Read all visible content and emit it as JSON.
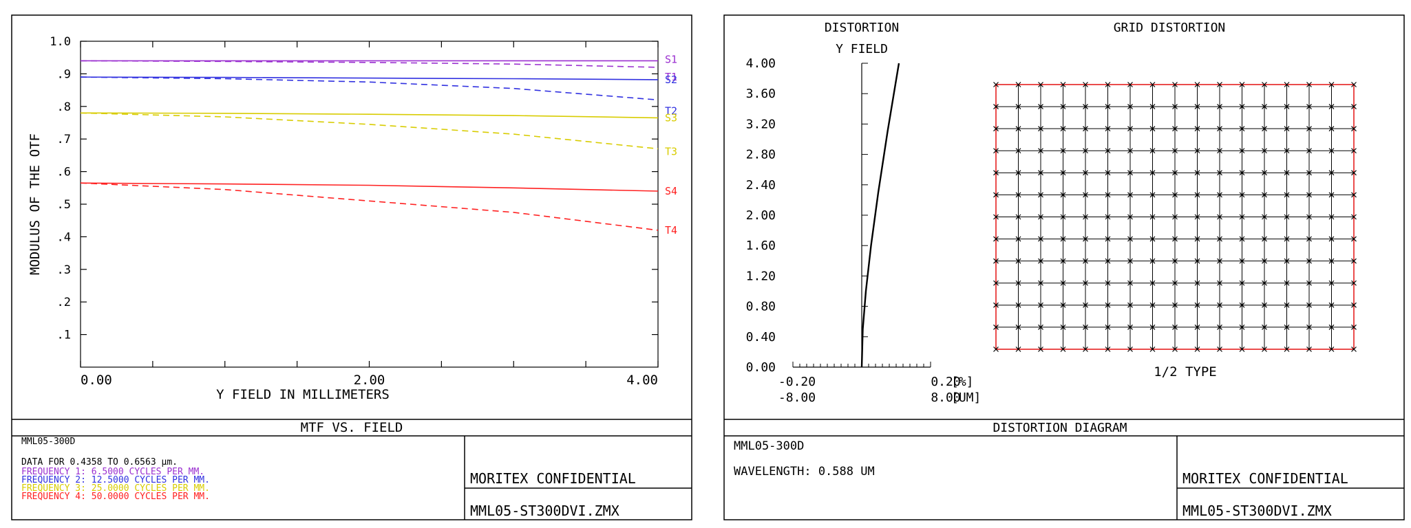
{
  "left_panel": {
    "footer_title": "MTF VS. FIELD",
    "lens_name": "MML05-300D",
    "data_line": "DATA FOR 0.4358 TO 0.6563 µm.",
    "frequencies": [
      {
        "text": "FREQUENCY 1:    6.5000  CYCLES  PER  MM.",
        "color": "#9b30d0"
      },
      {
        "text": "FREQUENCY 2:   12.5000  CYCLES  PER  MM.",
        "color": "#3030e0"
      },
      {
        "text": "FREQUENCY 3:   25.0000  CYCLES  PER  MM.",
        "color": "#d8cc00"
      },
      {
        "text": "FREQUENCY 4:   50.0000  CYCLES  PER  MM.",
        "color": "#ff2020"
      }
    ],
    "confidential": "MORITEX CONFIDENTIAL",
    "file_name": "MML05-ST300DVI.ZMX"
  },
  "right_panel": {
    "footer_title": "DISTORTION DIAGRAM",
    "lens_name": "MML05-300D",
    "wavelength": "WAVELENGTH: 0.588 UM",
    "confidential": "MORITEX CONFIDENTIAL",
    "file_name": "MML05-ST300DVI.ZMX",
    "grid_title": "GRID DISTORTION",
    "grid_caption": "1/2 TYPE",
    "grid_color": "#e00000",
    "grid_cols": 17,
    "grid_rows": 13
  },
  "chart_data": [
    {
      "type": "line",
      "ylabel": "MODULUS OF THE OTF",
      "xlabel": "Y FIELD IN MILLIMETERS",
      "xlim": [
        0,
        4
      ],
      "ylim": [
        0,
        1.0
      ],
      "x_tick_labels": [
        "0.00",
        "2.00",
        "4.00"
      ],
      "x_tick_values": [
        0,
        2,
        4
      ],
      "y_tick_labels": [
        "1.0",
        ".9",
        ".8",
        ".7",
        ".6",
        ".5",
        ".4",
        ".3",
        ".2",
        ".1"
      ],
      "y_tick_values": [
        1.0,
        0.9,
        0.8,
        0.7,
        0.6,
        0.5,
        0.4,
        0.3,
        0.2,
        0.1
      ],
      "grid": false,
      "series": [
        {
          "name": "S1",
          "color": "#9b30d0",
          "dash": false,
          "x": [
            0,
            1,
            2,
            3,
            4
          ],
          "y": [
            0.94,
            0.94,
            0.94,
            0.94,
            0.94
          ]
        },
        {
          "name": "T1",
          "color": "#9b30d0",
          "dash": true,
          "x": [
            0,
            1,
            2,
            3,
            4
          ],
          "y": [
            0.94,
            0.938,
            0.935,
            0.93,
            0.92
          ]
        },
        {
          "name": "S2",
          "color": "#3030e0",
          "dash": false,
          "x": [
            0,
            1,
            2,
            3,
            4
          ],
          "y": [
            0.89,
            0.889,
            0.887,
            0.885,
            0.882
          ]
        },
        {
          "name": "T2",
          "color": "#3030e0",
          "dash": true,
          "x": [
            0,
            1,
            2,
            3,
            4
          ],
          "y": [
            0.89,
            0.885,
            0.875,
            0.855,
            0.82
          ]
        },
        {
          "name": "S3",
          "color": "#d8cc00",
          "dash": false,
          "x": [
            0,
            1,
            2,
            3,
            4
          ],
          "y": [
            0.78,
            0.779,
            0.776,
            0.772,
            0.765
          ]
        },
        {
          "name": "T3",
          "color": "#d8cc00",
          "dash": true,
          "x": [
            0,
            1,
            2,
            3,
            4
          ],
          "y": [
            0.78,
            0.768,
            0.745,
            0.715,
            0.67
          ]
        },
        {
          "name": "S4",
          "color": "#ff2020",
          "dash": false,
          "x": [
            0,
            1,
            2,
            3,
            4
          ],
          "y": [
            0.565,
            0.562,
            0.558,
            0.55,
            0.54
          ]
        },
        {
          "name": "T4",
          "color": "#ff2020",
          "dash": true,
          "x": [
            0,
            1,
            2,
            3,
            4
          ],
          "y": [
            0.565,
            0.545,
            0.51,
            0.475,
            0.42
          ]
        }
      ]
    },
    {
      "type": "line",
      "title": "DISTORTION",
      "ylabel": "Y FIELD",
      "xlim": [
        -0.2,
        0.2
      ],
      "ylim": [
        0,
        4.0
      ],
      "y_tick_labels": [
        "4.00",
        "3.60",
        "3.20",
        "2.80",
        "2.40",
        "2.00",
        "1.60",
        "1.20",
        "0.80",
        "0.40",
        "0.00"
      ],
      "y_tick_values": [
        4.0,
        3.6,
        3.2,
        2.8,
        2.4,
        2.0,
        1.6,
        1.2,
        0.8,
        0.4,
        0.0
      ],
      "x_tick_labels_row1": [
        "-0.20",
        "0.20",
        "[%]"
      ],
      "x_tick_labels_row2": [
        "-8.00",
        "8.00",
        "[UM]"
      ],
      "series": [
        {
          "name": "",
          "color": "#000000",
          "dash": false,
          "x": [
            0,
            0.003,
            0.012,
            0.027,
            0.048,
            0.075,
            0.108
          ],
          "y": [
            0,
            0.5,
            1.0,
            1.6,
            2.3,
            3.1,
            4.0
          ]
        }
      ]
    }
  ]
}
